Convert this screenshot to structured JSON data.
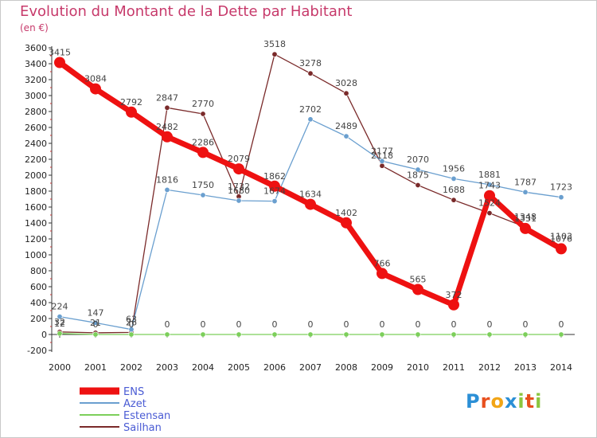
{
  "title": "Evolution du Montant de la Dette par Habitant",
  "subtitle": "(en €)",
  "logo": {
    "text": "Proxiti",
    "letters": [
      "P",
      "r",
      "o",
      "x",
      "i",
      "t",
      "i"
    ],
    "colors": [
      "#2b8fd6",
      "#e8501e",
      "#f2a516",
      "#2b8fd6",
      "#8cc63f",
      "#e8501e",
      "#8cc63f"
    ]
  },
  "chart_data": {
    "type": "line",
    "title": "Evolution du Montant de la Dette par Habitant",
    "subtitle": "(en €)",
    "x": [
      "2000",
      "2001",
      "2002",
      "2003",
      "2004",
      "2005",
      "2006",
      "2007",
      "2008",
      "2009",
      "2010",
      "2011",
      "2012",
      "2013",
      "2014"
    ],
    "ylim": [
      -200,
      3600
    ],
    "yticks": [
      -200,
      0,
      200,
      400,
      600,
      800,
      1000,
      1200,
      1400,
      1600,
      1800,
      2000,
      2200,
      2400,
      2600,
      2800,
      3000,
      3200,
      3400,
      3600
    ],
    "grid": false,
    "legend_position": "bottom-left",
    "series": [
      {
        "name": "Sailhan",
        "color": "#7a2a2a",
        "values": [
          32,
          21,
          26,
          2847,
          2770,
          1732,
          3518,
          3278,
          3028,
          2118,
          1875,
          1688,
          1524,
          1348,
          1103
        ]
      },
      {
        "name": "Estensan",
        "color": "#7ccf5a",
        "values": [
          12,
          0,
          0,
          0,
          0,
          0,
          0,
          0,
          0,
          0,
          0,
          0,
          0,
          0,
          0
        ]
      },
      {
        "name": "Azet",
        "color": "#6a9fcf",
        "values": [
          224,
          147,
          63,
          1816,
          1750,
          1680,
          1674,
          2702,
          2489,
          2177,
          2070,
          1956,
          1881,
          1787,
          1723
        ]
      },
      {
        "name": "ENS",
        "color": "#ee1111",
        "values": [
          3415,
          3084,
          2792,
          2482,
          2286,
          2079,
          1862,
          1634,
          1402,
          766,
          565,
          372,
          1743,
          1331,
          1076
        ]
      }
    ]
  }
}
